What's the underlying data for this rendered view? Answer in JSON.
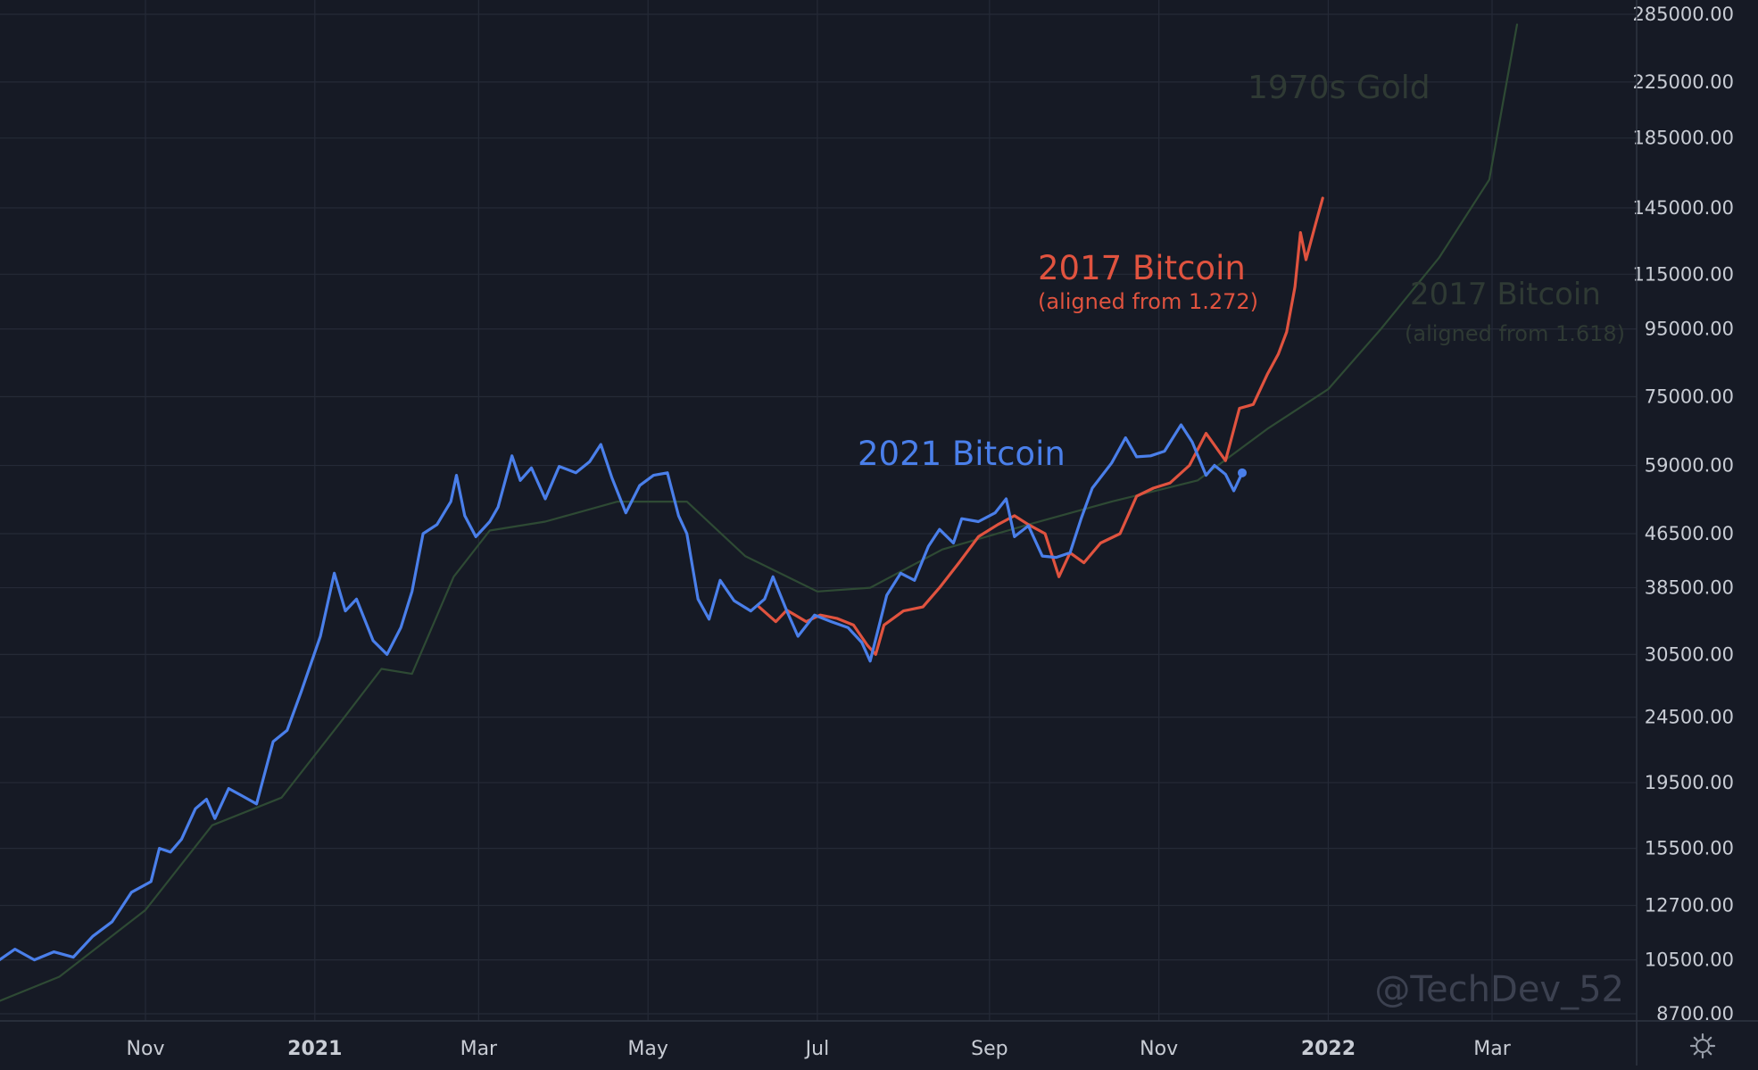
{
  "chart_data": {
    "type": "line",
    "y_scale": "log",
    "x_range": [
      "2020-09-01",
      "2022-04-15"
    ],
    "y_ticks": [
      "285000.00",
      "225000.00",
      "185000.00",
      "145000.00",
      "115000.00",
      "95000.00",
      "75000.00",
      "59000.00",
      "46500.00",
      "38500.00",
      "30500.00",
      "24500.00",
      "19500.00",
      "15500.00",
      "12700.00",
      "10500.00",
      "8700.00"
    ],
    "x_ticks": [
      {
        "label": "Nov",
        "date": "2020-11-01",
        "bold": false
      },
      {
        "label": "2021",
        "date": "2021-01-01",
        "bold": true
      },
      {
        "label": "Mar",
        "date": "2021-03-01",
        "bold": false
      },
      {
        "label": "May",
        "date": "2021-05-01",
        "bold": false
      },
      {
        "label": "Jul",
        "date": "2021-07-01",
        "bold": false
      },
      {
        "label": "Sep",
        "date": "2021-09-01",
        "bold": false
      },
      {
        "label": "Nov",
        "date": "2021-11-01",
        "bold": false
      },
      {
        "label": "2022",
        "date": "2022-01-01",
        "bold": true
      },
      {
        "label": "Mar",
        "date": "2022-03-01",
        "bold": false
      }
    ],
    "series": [
      {
        "name": "2021 Bitcoin",
        "color": "#4a7fea",
        "points": [
          [
            "2020-09-01",
            10100
          ],
          [
            "2020-09-08",
            10400
          ],
          [
            "2020-09-15",
            10900
          ],
          [
            "2020-09-22",
            10500
          ],
          [
            "2020-09-29",
            10800
          ],
          [
            "2020-10-06",
            10600
          ],
          [
            "2020-10-13",
            11400
          ],
          [
            "2020-10-20",
            12000
          ],
          [
            "2020-10-27",
            13300
          ],
          [
            "2020-11-03",
            13800
          ],
          [
            "2020-11-06",
            15500
          ],
          [
            "2020-11-10",
            15300
          ],
          [
            "2020-11-14",
            16000
          ],
          [
            "2020-11-19",
            17800
          ],
          [
            "2020-11-23",
            18400
          ],
          [
            "2020-11-26",
            17200
          ],
          [
            "2020-12-01",
            19100
          ],
          [
            "2020-12-06",
            18600
          ],
          [
            "2020-12-11",
            18100
          ],
          [
            "2020-12-17",
            22500
          ],
          [
            "2020-12-22",
            23400
          ],
          [
            "2020-12-27",
            26700
          ],
          [
            "2021-01-03",
            32500
          ],
          [
            "2021-01-08",
            40500
          ],
          [
            "2021-01-12",
            35500
          ],
          [
            "2021-01-16",
            37000
          ],
          [
            "2021-01-22",
            32000
          ],
          [
            "2021-01-27",
            30500
          ],
          [
            "2021-02-01",
            33500
          ],
          [
            "2021-02-05",
            38000
          ],
          [
            "2021-02-09",
            46500
          ],
          [
            "2021-02-14",
            48000
          ],
          [
            "2021-02-19",
            52000
          ],
          [
            "2021-02-21",
            57000
          ],
          [
            "2021-02-24",
            49500
          ],
          [
            "2021-02-28",
            46000
          ],
          [
            "2021-03-05",
            48500
          ],
          [
            "2021-03-08",
            51000
          ],
          [
            "2021-03-13",
            61000
          ],
          [
            "2021-03-16",
            56000
          ],
          [
            "2021-03-20",
            58500
          ],
          [
            "2021-03-25",
            52500
          ],
          [
            "2021-03-30",
            58800
          ],
          [
            "2021-04-05",
            57500
          ],
          [
            "2021-04-10",
            59800
          ],
          [
            "2021-04-14",
            63500
          ],
          [
            "2021-04-18",
            56500
          ],
          [
            "2021-04-23",
            50000
          ],
          [
            "2021-04-28",
            55000
          ],
          [
            "2021-05-03",
            57000
          ],
          [
            "2021-05-08",
            57500
          ],
          [
            "2021-05-12",
            49500
          ],
          [
            "2021-05-15",
            46500
          ],
          [
            "2021-05-19",
            37000
          ],
          [
            "2021-05-23",
            34500
          ],
          [
            "2021-05-27",
            39500
          ],
          [
            "2021-06-01",
            36800
          ],
          [
            "2021-06-07",
            35500
          ],
          [
            "2021-06-12",
            37000
          ],
          [
            "2021-06-15",
            40000
          ],
          [
            "2021-06-20",
            35500
          ],
          [
            "2021-06-24",
            32500
          ],
          [
            "2021-06-30",
            35000
          ],
          [
            "2021-07-06",
            34200
          ],
          [
            "2021-07-12",
            33500
          ],
          [
            "2021-07-17",
            31800
          ],
          [
            "2021-07-20",
            29800
          ],
          [
            "2021-07-26",
            37500
          ],
          [
            "2021-07-31",
            40500
          ],
          [
            "2021-08-05",
            39500
          ],
          [
            "2021-08-10",
            44500
          ],
          [
            "2021-08-14",
            47200
          ],
          [
            "2021-08-19",
            45000
          ],
          [
            "2021-08-22",
            49000
          ],
          [
            "2021-08-28",
            48500
          ],
          [
            "2021-09-03",
            50000
          ],
          [
            "2021-09-07",
            52500
          ],
          [
            "2021-09-10",
            46000
          ],
          [
            "2021-09-15",
            47800
          ],
          [
            "2021-09-20",
            43000
          ],
          [
            "2021-09-25",
            42800
          ],
          [
            "2021-09-30",
            43500
          ],
          [
            "2021-10-04",
            49000
          ],
          [
            "2021-10-08",
            54500
          ],
          [
            "2021-10-15",
            59500
          ],
          [
            "2021-10-20",
            65000
          ],
          [
            "2021-10-24",
            60800
          ],
          [
            "2021-10-29",
            61000
          ],
          [
            "2021-11-03",
            62000
          ],
          [
            "2021-11-09",
            68000
          ],
          [
            "2021-11-13",
            64000
          ],
          [
            "2021-11-18",
            57000
          ],
          [
            "2021-11-21",
            59000
          ],
          [
            "2021-11-25",
            57200
          ],
          [
            "2021-11-28",
            54000
          ],
          [
            "2021-12-01",
            57500
          ]
        ]
      },
      {
        "name": "2017 Bitcoin",
        "color": "#e0533f",
        "points": [
          [
            "2021-06-10",
            36000
          ],
          [
            "2021-06-16",
            34200
          ],
          [
            "2021-06-20",
            35600
          ],
          [
            "2021-06-27",
            34200
          ],
          [
            "2021-07-02",
            35000
          ],
          [
            "2021-07-08",
            34600
          ],
          [
            "2021-07-14",
            33800
          ],
          [
            "2021-07-19",
            31500
          ],
          [
            "2021-07-22",
            30500
          ],
          [
            "2021-07-25",
            33800
          ],
          [
            "2021-08-01",
            35500
          ],
          [
            "2021-08-08",
            36000
          ],
          [
            "2021-08-14",
            38500
          ],
          [
            "2021-08-21",
            42000
          ],
          [
            "2021-08-28",
            46000
          ],
          [
            "2021-09-04",
            48000
          ],
          [
            "2021-09-10",
            49500
          ],
          [
            "2021-09-15",
            48000
          ],
          [
            "2021-09-21",
            46500
          ],
          [
            "2021-09-26",
            40000
          ],
          [
            "2021-09-30",
            43500
          ],
          [
            "2021-10-05",
            42000
          ],
          [
            "2021-10-11",
            45000
          ],
          [
            "2021-10-18",
            46500
          ],
          [
            "2021-10-24",
            53000
          ],
          [
            "2021-10-30",
            54500
          ],
          [
            "2021-11-05",
            55500
          ],
          [
            "2021-11-12",
            59000
          ],
          [
            "2021-11-18",
            66000
          ],
          [
            "2021-11-25",
            60000
          ],
          [
            "2021-11-30",
            72000
          ],
          [
            "2021-12-05",
            73000
          ],
          [
            "2021-12-10",
            81000
          ],
          [
            "2021-12-14",
            87000
          ],
          [
            "2021-12-17",
            94000
          ],
          [
            "2021-12-20",
            110000
          ],
          [
            "2021-12-22",
            133000
          ],
          [
            "2021-12-24",
            121000
          ],
          [
            "2021-12-27",
            135000
          ],
          [
            "2021-12-30",
            150000
          ]
        ]
      },
      {
        "name": "",
        "color": "#2e4a34",
        "points": [
          [
            "2020-09-01",
            8800
          ],
          [
            "2020-10-01",
            9900
          ],
          [
            "2020-11-01",
            12500
          ],
          [
            "2020-11-25",
            16800
          ],
          [
            "2020-12-20",
            18500
          ],
          [
            "2021-01-10",
            24000
          ],
          [
            "2021-01-25",
            29000
          ],
          [
            "2021-02-05",
            28500
          ],
          [
            "2021-02-20",
            40000
          ],
          [
            "2021-03-05",
            47000
          ],
          [
            "2021-03-25",
            48500
          ],
          [
            "2021-04-20",
            52000
          ],
          [
            "2021-05-15",
            52000
          ],
          [
            "2021-06-05",
            43000
          ],
          [
            "2021-07-01",
            38000
          ],
          [
            "2021-07-20",
            38500
          ],
          [
            "2021-08-15",
            44000
          ],
          [
            "2021-09-15",
            48000
          ],
          [
            "2021-10-15",
            52000
          ],
          [
            "2021-11-15",
            56000
          ],
          [
            "2021-12-10",
            67000
          ],
          [
            "2022-01-01",
            77000
          ],
          [
            "2022-01-20",
            95000
          ],
          [
            "2022-02-10",
            122000
          ],
          [
            "2022-02-28",
            160000
          ],
          [
            "2022-03-05",
            210000
          ],
          [
            "2022-03-10",
            275000
          ]
        ]
      }
    ],
    "annotations": [
      {
        "title": "2017 Bitcoin",
        "subtitle": "(aligned from 1.272)",
        "color": "#e0533f"
      },
      {
        "title": "2021 Bitcoin",
        "subtitle": "",
        "color": "#4a7fea"
      },
      {
        "title": "1970s Gold",
        "subtitle": "",
        "color": "#2f3a34"
      },
      {
        "title": "2017 Bitcoin",
        "subtitle": "(aligned from 1.618)",
        "color": "#2f3a34"
      }
    ],
    "grid": true
  },
  "watermark": "@TechDev_52",
  "settings_icon": "gear-icon"
}
